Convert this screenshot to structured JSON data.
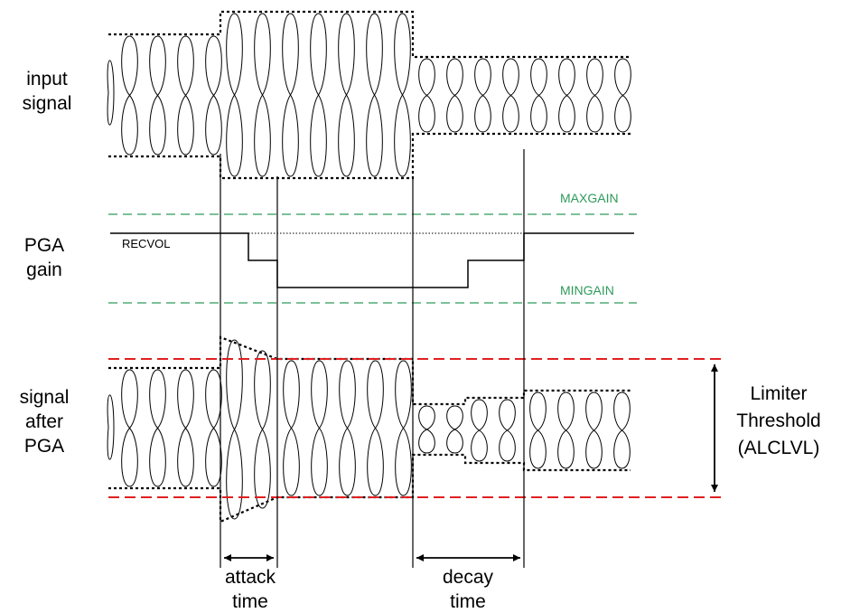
{
  "labels": {
    "input_signal": [
      "input",
      "signal"
    ],
    "pga_gain": [
      "PGA",
      "gain"
    ],
    "signal_after_pga": [
      "signal",
      "after",
      "PGA"
    ],
    "recvol": "RECVOL",
    "maxgain": "MAXGAIN",
    "mingain": "MINGAIN",
    "limiter_threshold": [
      "Limiter",
      "Threshold",
      "(ALCLVL)"
    ],
    "attack_time": [
      "attack",
      "time"
    ],
    "decay_time": [
      "decay",
      "time"
    ]
  },
  "colors": {
    "signal": "#000000",
    "gain_limits": "#2e9a5c",
    "threshold": "#e02020"
  }
}
